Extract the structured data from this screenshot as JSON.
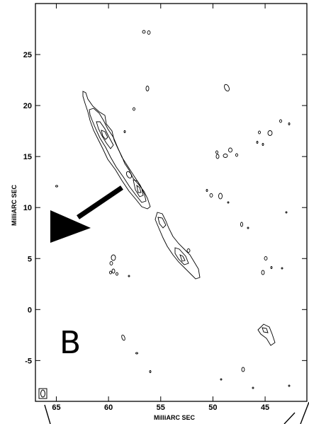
{
  "chart_data": {
    "type": "contour",
    "panel_label": "B",
    "xlabel": "MilliARC SEC",
    "ylabel": "MilliARC SEC",
    "xlim": [
      67,
      41
    ],
    "ylim": [
      -9,
      30
    ],
    "x_ticks": [
      65,
      60,
      55,
      50,
      45
    ],
    "y_ticks": [
      25,
      20,
      15,
      10,
      5,
      0,
      -5
    ],
    "jet_ridge": [
      {
        "x": 61.5,
        "y": 21.0
      },
      {
        "x": 58.8,
        "y": 17.0
      },
      {
        "x": 57.0,
        "y": 13.5
      },
      {
        "x": 55.5,
        "y": 10.5
      },
      {
        "x": 54.5,
        "y": 8.0
      },
      {
        "x": 52.0,
        "y": 5.5
      },
      {
        "x": 50.5,
        "y": 3.5
      }
    ],
    "arrow": {
      "from": {
        "x": 57.5,
        "y": 12.0
      },
      "to": {
        "x": 65.0,
        "y": 6.5
      }
    }
  }
}
